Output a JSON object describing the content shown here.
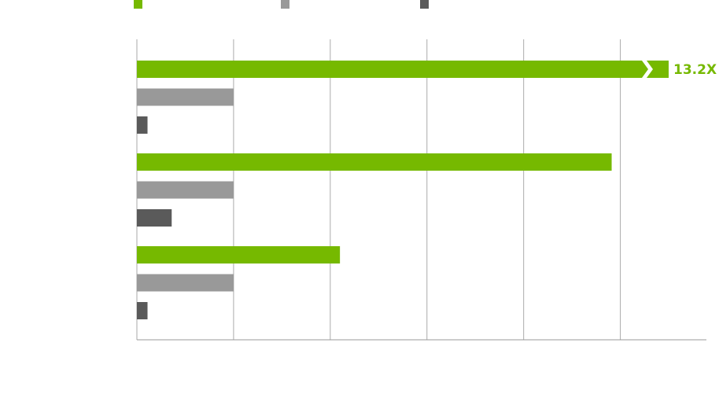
{
  "chart_data": {
    "type": "barh",
    "categories": [
      null,
      null,
      null
    ],
    "series": [
      {
        "color": "#76b900",
        "values": [
          13.2,
          4.91,
          2.1
        ],
        "value_labels": [
          "13.2X",
          null,
          null
        ]
      },
      {
        "color": "#999999",
        "values": [
          1,
          1,
          1
        ]
      },
      {
        "color": "#5a5a5a",
        "values": [
          0.11,
          0.36,
          0.11
        ]
      }
    ],
    "xlim": [
      0,
      5.89
    ],
    "xticks": [
      0,
      1,
      2,
      3,
      4,
      5
    ],
    "grid": true,
    "legend": "top"
  }
}
